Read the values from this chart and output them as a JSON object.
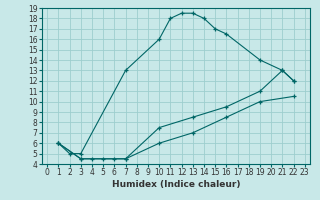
{
  "xlabel": "Humidex (Indice chaleur)",
  "bg_color": "#c8e8e8",
  "line_color": "#006666",
  "grid_color": "#9ecece",
  "xlim": [
    -0.5,
    23.5
  ],
  "ylim": [
    4,
    19
  ],
  "xticks": [
    0,
    1,
    2,
    3,
    4,
    5,
    6,
    7,
    8,
    9,
    10,
    11,
    12,
    13,
    14,
    15,
    16,
    17,
    18,
    19,
    20,
    21,
    22,
    23
  ],
  "yticks": [
    4,
    5,
    6,
    7,
    8,
    9,
    10,
    11,
    12,
    13,
    14,
    15,
    16,
    17,
    18,
    19
  ],
  "curve1_x": [
    1,
    2,
    3,
    7,
    10,
    11,
    12,
    13,
    14,
    15,
    16,
    19,
    21,
    22
  ],
  "curve1_y": [
    6,
    5,
    5,
    13,
    16,
    18,
    18.5,
    18.5,
    18,
    17,
    16.5,
    14,
    13,
    12
  ],
  "curve2_x": [
    1,
    3,
    4,
    5,
    6,
    7,
    10,
    13,
    16,
    19,
    21,
    22
  ],
  "curve2_y": [
    6,
    4.5,
    4.5,
    4.5,
    4.5,
    4.5,
    7.5,
    8.5,
    9.5,
    11,
    13,
    12
  ],
  "curve3_x": [
    1,
    3,
    7,
    10,
    13,
    16,
    19,
    22
  ],
  "curve3_y": [
    6,
    4.5,
    4.5,
    6,
    7,
    8.5,
    10,
    10.5
  ],
  "tick_fontsize": 5.5,
  "xlabel_fontsize": 6.5
}
